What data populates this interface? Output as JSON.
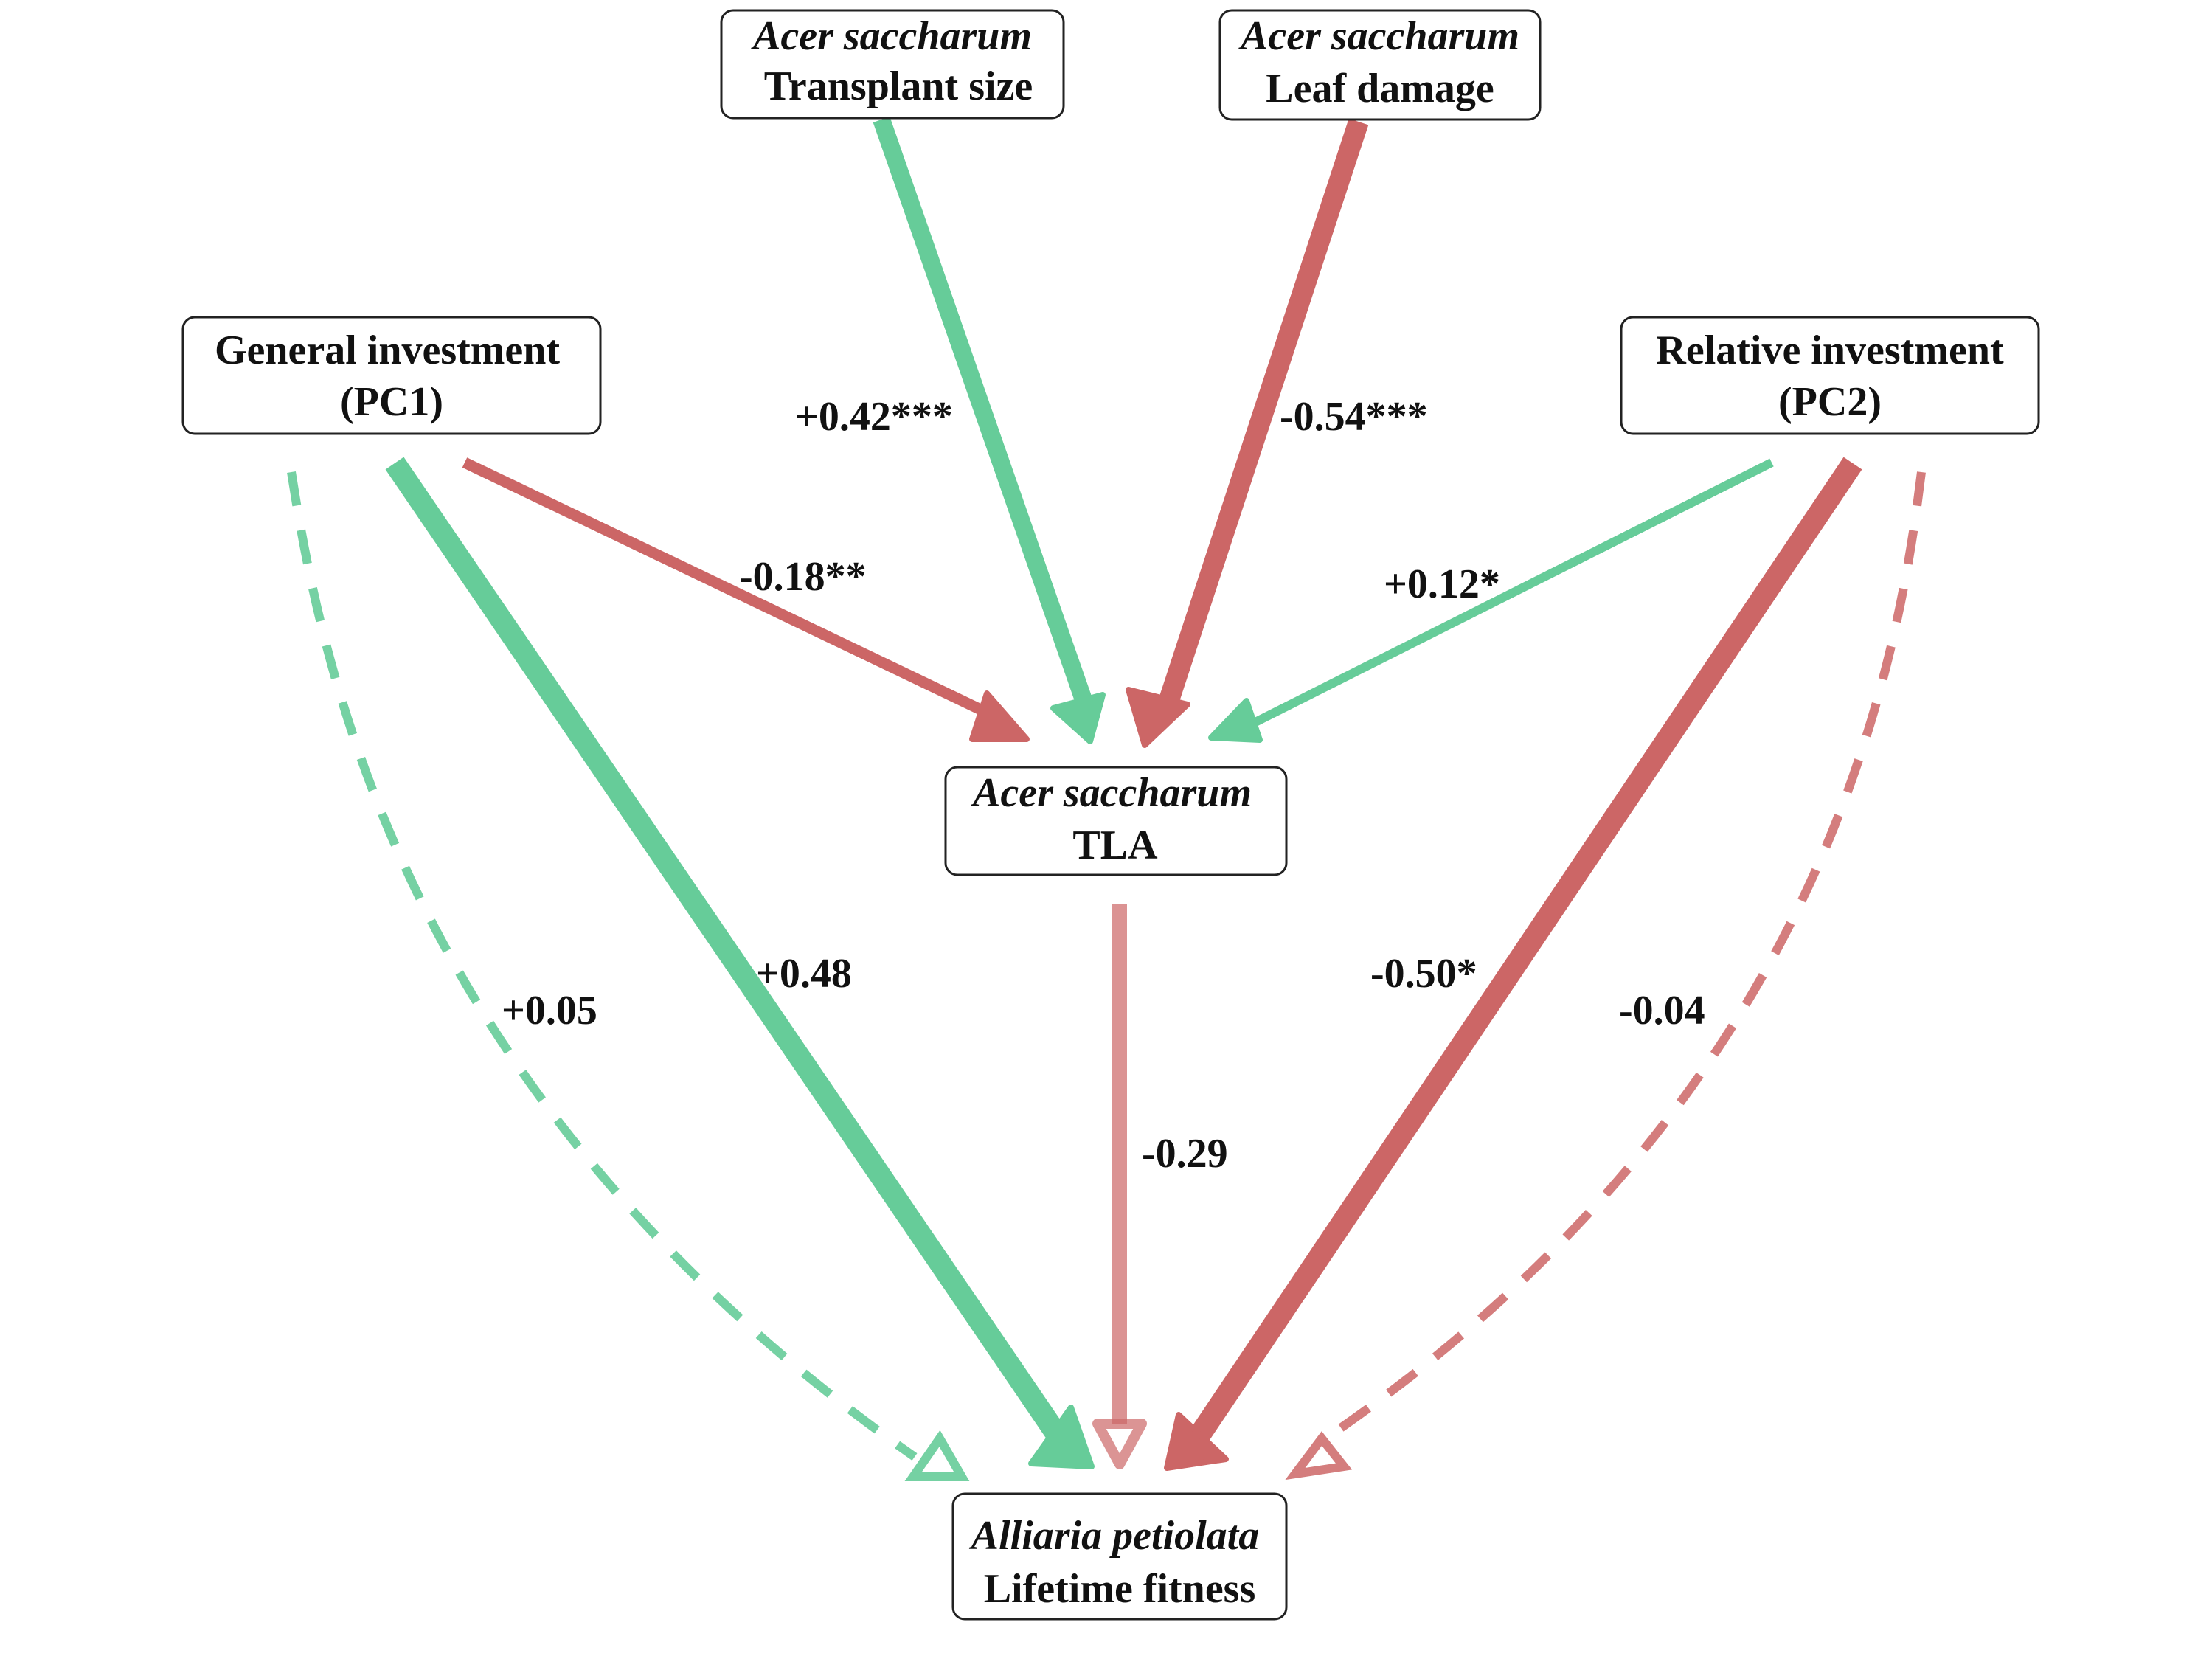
{
  "colors": {
    "positive": "#66cc99",
    "negative": "#cc6666",
    "text": "#111111",
    "box_border": "#222222"
  },
  "nodes": {
    "transplant_size": {
      "line1": "Acer saccharum",
      "line2": "Transplant size"
    },
    "leaf_damage": {
      "line1": "Acer saccharum",
      "line2": "Leaf damage"
    },
    "general_investment": {
      "line1": "General investment",
      "line2": "(PC1)"
    },
    "relative_investment": {
      "line1": "Relative investment",
      "line2": "(PC2)"
    },
    "tla": {
      "line1": "Acer saccharum",
      "line2": "TLA"
    },
    "fitness": {
      "line1": "Alliaria petiolata",
      "line2": "Lifetime fitness"
    }
  },
  "edges": [
    {
      "id": "transplant-to-tla",
      "from": "transplant_size",
      "to": "tla",
      "label": "+0.42***",
      "sign": "positive",
      "significant": true
    },
    {
      "id": "damage-to-tla",
      "from": "leaf_damage",
      "to": "tla",
      "label": "-0.54***",
      "sign": "negative",
      "significant": true
    },
    {
      "id": "pc1-to-tla",
      "from": "general_investment",
      "to": "tla",
      "label": "-0.18**",
      "sign": "negative",
      "significant": true
    },
    {
      "id": "pc2-to-tla",
      "from": "relative_investment",
      "to": "tla",
      "label": "+0.12*",
      "sign": "positive",
      "significant": true
    },
    {
      "id": "pc1-to-fitness-direct",
      "from": "general_investment",
      "to": "fitness",
      "label": "+0.48",
      "sign": "positive",
      "significant": false
    },
    {
      "id": "pc1-to-fitness-curved",
      "from": "general_investment",
      "to": "fitness",
      "label": "+0.05",
      "sign": "positive",
      "significant": false,
      "style": "dashed"
    },
    {
      "id": "tla-to-fitness",
      "from": "tla",
      "to": "fitness",
      "label": "-0.29",
      "sign": "negative",
      "significant": false
    },
    {
      "id": "pc2-to-fitness-direct",
      "from": "relative_investment",
      "to": "fitness",
      "label": "-0.50*",
      "sign": "negative",
      "significant": true
    },
    {
      "id": "pc2-to-fitness-curved",
      "from": "relative_investment",
      "to": "fitness",
      "label": "-0.04",
      "sign": "negative",
      "significant": false,
      "style": "dashed"
    }
  ]
}
